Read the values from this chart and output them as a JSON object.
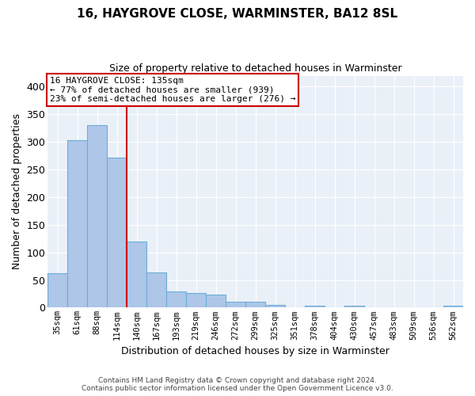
{
  "title": "16, HAYGROVE CLOSE, WARMINSTER, BA12 8SL",
  "subtitle": "Size of property relative to detached houses in Warminster",
  "xlabel": "Distribution of detached houses by size in Warminster",
  "ylabel": "Number of detached properties",
  "bin_labels": [
    "35sqm",
    "61sqm",
    "88sqm",
    "114sqm",
    "140sqm",
    "167sqm",
    "193sqm",
    "219sqm",
    "246sqm",
    "272sqm",
    "299sqm",
    "325sqm",
    "351sqm",
    "378sqm",
    "404sqm",
    "430sqm",
    "457sqm",
    "483sqm",
    "509sqm",
    "536sqm",
    "562sqm"
  ],
  "bar_heights": [
    62,
    303,
    330,
    272,
    120,
    63,
    29,
    26,
    24,
    11,
    11,
    5,
    0,
    4,
    0,
    3,
    0,
    0,
    0,
    0,
    4
  ],
  "bar_color": "#aec6e8",
  "bar_edgecolor": "#6aaed6",
  "red_line_x": 3.5,
  "annotation_text": "16 HAYGROVE CLOSE: 135sqm\n← 77% of detached houses are smaller (939)\n23% of semi-detached houses are larger (276) →",
  "annotation_box_color": "#ffffff",
  "annotation_border_color": "#cc0000",
  "ylim": [
    0,
    420
  ],
  "yticks": [
    0,
    50,
    100,
    150,
    200,
    250,
    300,
    350,
    400
  ],
  "background_color": "#eaf0f8",
  "grid_color": "#ffffff",
  "footer_line1": "Contains HM Land Registry data © Crown copyright and database right 2024.",
  "footer_line2": "Contains public sector information licensed under the Open Government Licence v3.0."
}
